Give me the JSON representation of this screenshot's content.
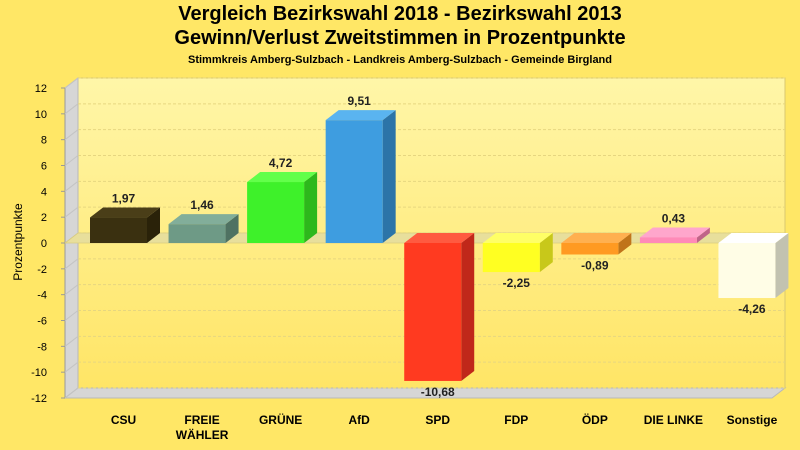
{
  "chart_data": {
    "type": "bar",
    "title": "Vergleich Bezirkswahl 2018 - Bezirkswahl 2013",
    "subtitle": "Gewinn/Verlust Zweitstimmen in Prozentpunkte",
    "subtitle2": "Stimmkreis Amberg-Sulzbach - Landkreis Amberg-Sulzbach - Gemeinde Birgland",
    "ylabel": "Prozentpunkte",
    "xlabel": "",
    "ylim": [
      -12,
      12
    ],
    "yticks": [
      "12",
      "10",
      "8",
      "6",
      "4",
      "2",
      "0",
      "-2",
      "-4",
      "-6",
      "-8",
      "-10",
      "-12"
    ],
    "grid": true,
    "categories": [
      [
        "CSU"
      ],
      [
        "FREIE",
        "WÄHLER"
      ],
      [
        "GRÜNE"
      ],
      [
        "AfD"
      ],
      [
        "SPD"
      ],
      [
        "FDP"
      ],
      [
        "ÖDP"
      ],
      [
        "DIE LINKE"
      ],
      [
        "Sonstige"
      ]
    ],
    "values": [
      1.97,
      1.46,
      4.72,
      9.51,
      -10.68,
      -2.25,
      -0.89,
      0.43,
      -4.26
    ],
    "value_labels": [
      "1,97",
      "1,46",
      "4,72",
      "9,51",
      "-10,68",
      "-2,25",
      "-0,89",
      "0,43",
      "-4,26"
    ],
    "colors": [
      "#3a3010",
      "#6e9a86",
      "#3ef12a",
      "#3e9de0",
      "#ff3a20",
      "#ffff22",
      "#ff9a22",
      "#ff8ab8",
      "#fffde6"
    ],
    "side_colors": [
      "#2a2209",
      "#4f7262",
      "#2db81c",
      "#2c74a8",
      "#c0281a",
      "#c8c81a",
      "#c0741a",
      "#c06489",
      "#c2c2b0"
    ],
    "top_colors": [
      "#4a3e18",
      "#82ae9a",
      "#62ff4a",
      "#5ab4f0",
      "#ff5a40",
      "#ffff66",
      "#ffb050",
      "#ffa6cc",
      "#ffffff"
    ]
  }
}
